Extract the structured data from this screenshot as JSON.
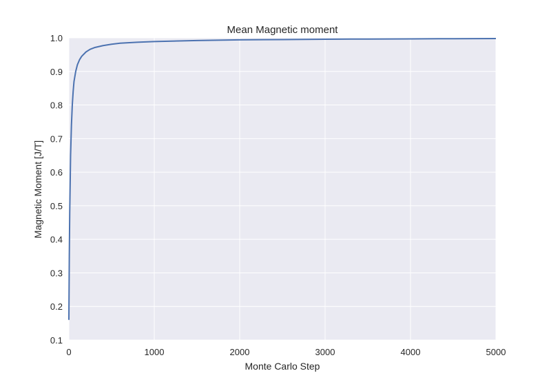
{
  "chart_data": {
    "type": "line",
    "title": "Mean Magnetic moment",
    "xlabel": "Monte Carlo Step",
    "ylabel": "Magnetic Moment [J/T]",
    "xlim": [
      0,
      5000
    ],
    "ylim": [
      0.1,
      1.0
    ],
    "xticks": [
      0,
      1000,
      2000,
      3000,
      4000,
      5000
    ],
    "yticks": [
      0.1,
      0.2,
      0.3,
      0.4,
      0.5,
      0.6,
      0.7,
      0.8,
      0.9,
      1.0
    ],
    "grid": true,
    "series": [
      {
        "x": [
          0,
          5,
          10,
          20,
          30,
          40,
          50,
          60,
          80,
          100,
          125,
          150,
          200,
          250,
          300,
          400,
          500,
          600,
          800,
          1000,
          1500,
          2000,
          2500,
          3000,
          3500,
          4000,
          4500,
          5000
        ],
        "y": [
          0.16,
          0.35,
          0.48,
          0.65,
          0.74,
          0.8,
          0.84,
          0.87,
          0.9,
          0.92,
          0.935,
          0.945,
          0.958,
          0.966,
          0.971,
          0.977,
          0.981,
          0.984,
          0.987,
          0.989,
          0.992,
          0.994,
          0.995,
          0.996,
          0.9965,
          0.997,
          0.9975,
          0.998
        ]
      }
    ]
  },
  "colors": {
    "plot_background": "#eaeaf2",
    "grid": "#ffffff",
    "line": "#4c72b0"
  }
}
